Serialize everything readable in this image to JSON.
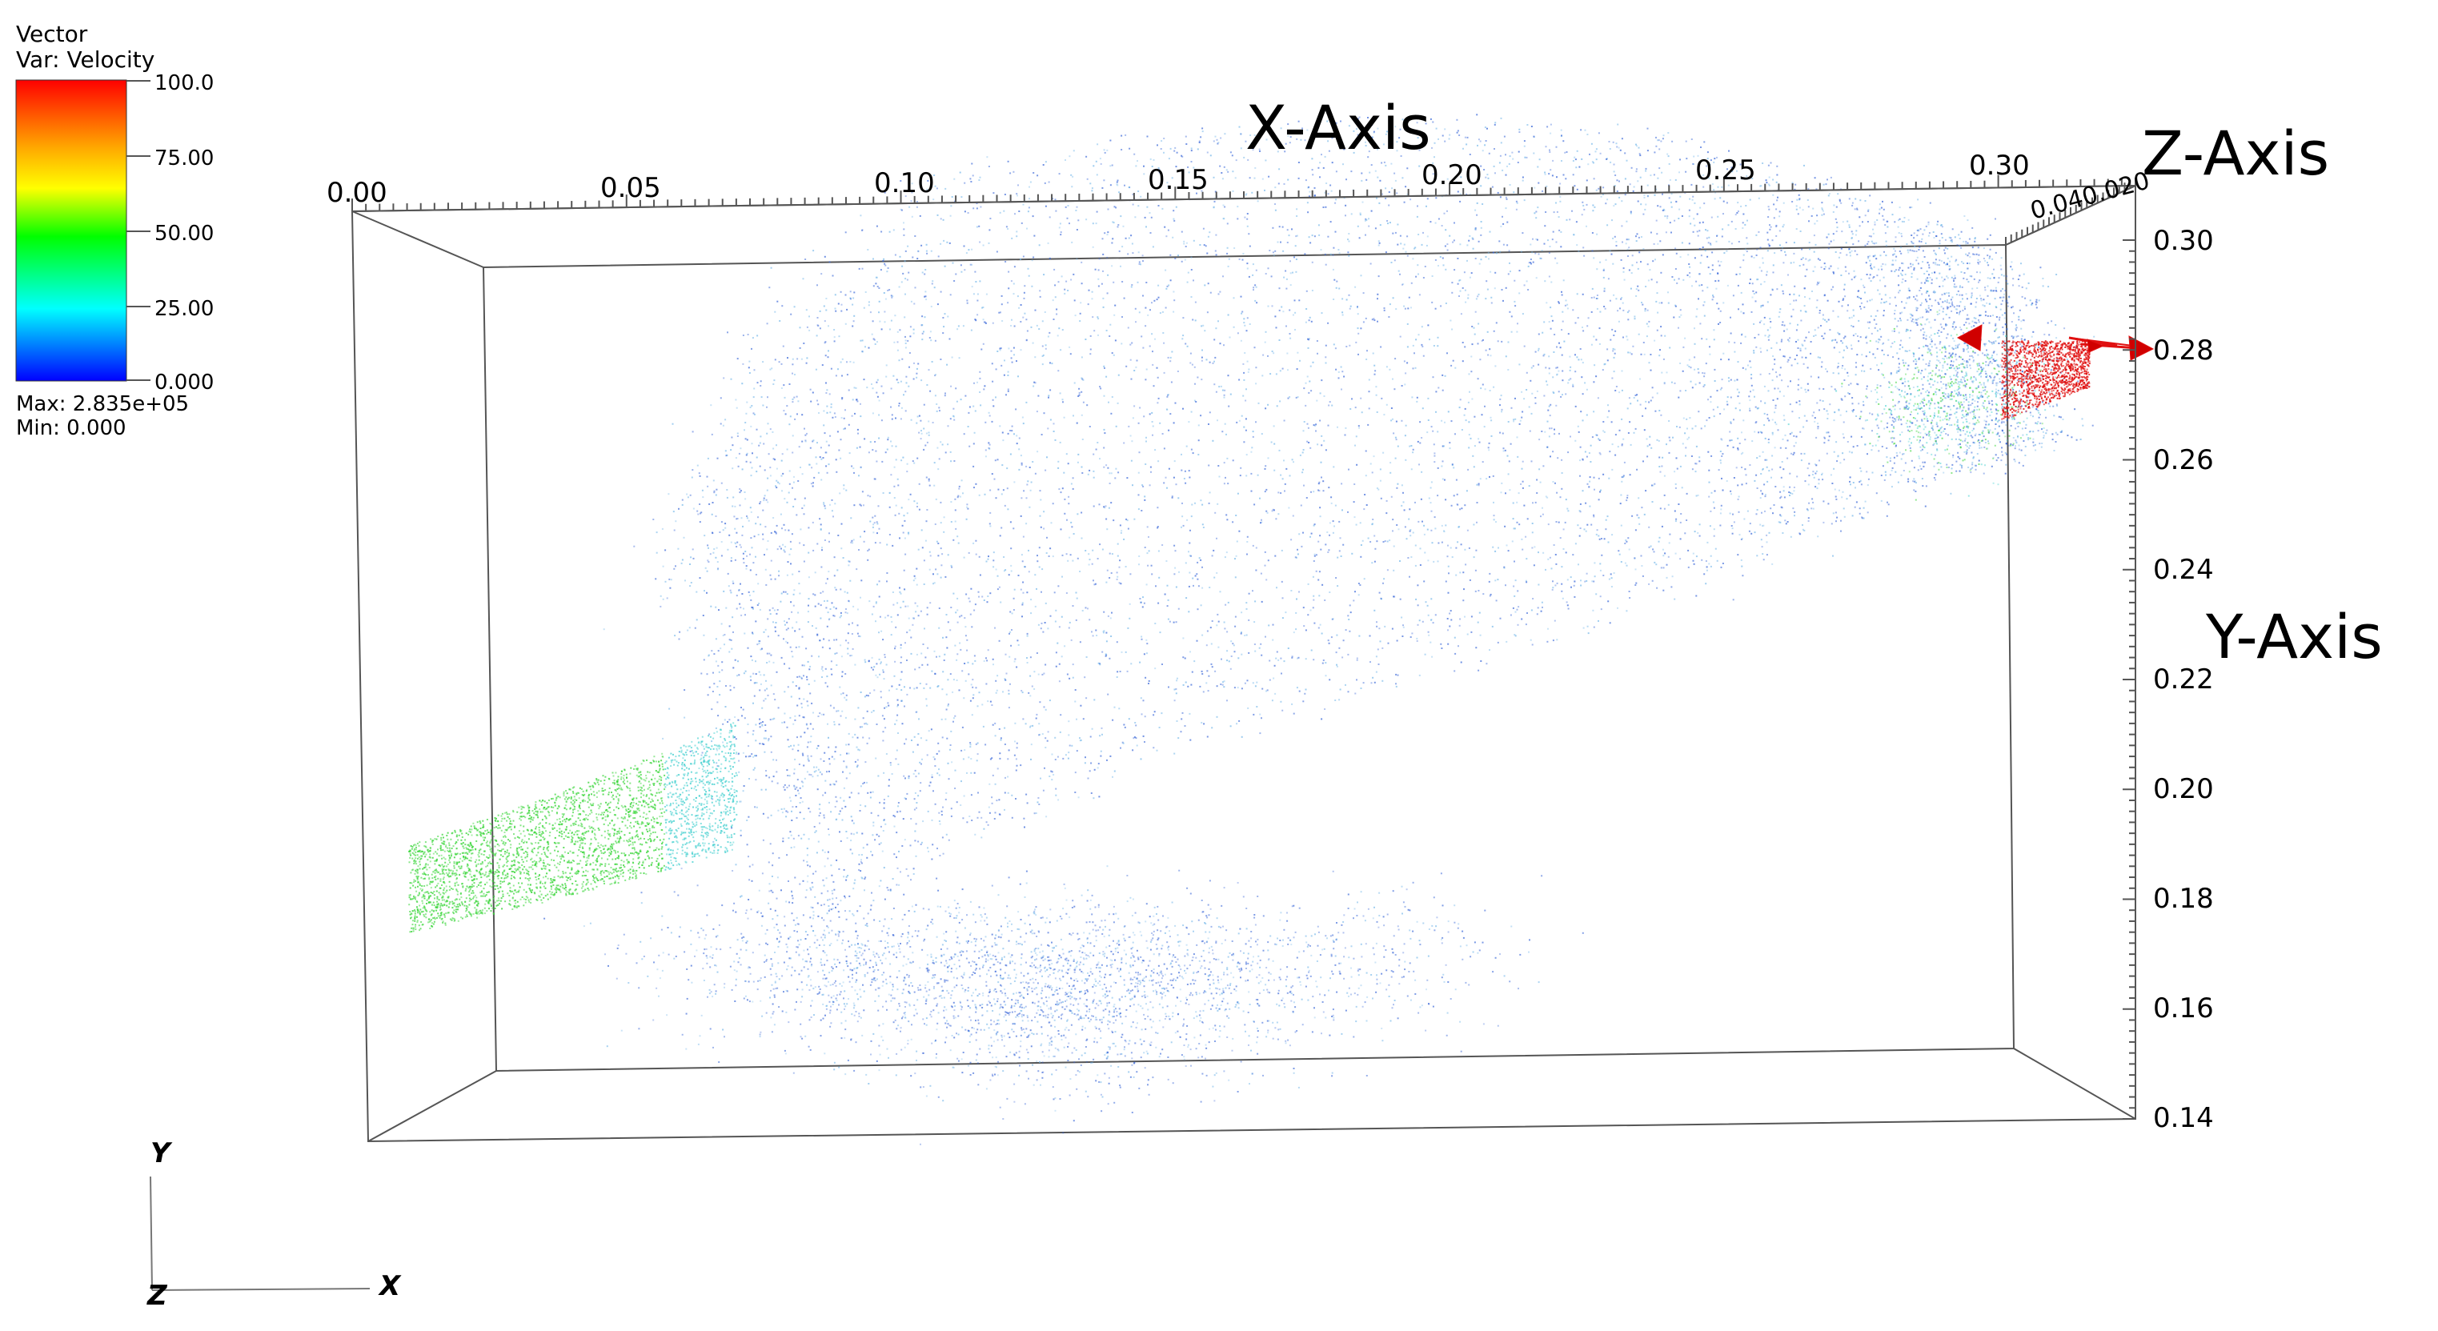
{
  "legend": {
    "header": "Vector",
    "variable": "Var: Velocity",
    "ticks": [
      "100.0",
      "75.00",
      "50.00",
      "25.00",
      "0.000"
    ],
    "max_label": "Max:  2.835e+05",
    "min_label": "Min:  0.000",
    "colors": [
      "#ff0000",
      "#ffa500",
      "#ffff00",
      "#00ff00",
      "#00ffff",
      "#0000ff"
    ]
  },
  "axes": {
    "x_title": "X-Axis",
    "y_title": "Y-Axis",
    "z_title": "Z-Axis",
    "x_ticks": [
      "0.00",
      "0.05",
      "0.10",
      "0.15",
      "0.20",
      "0.25",
      "0.30"
    ],
    "y_ticks": [
      "0.30",
      "0.28",
      "0.26",
      "0.24",
      "0.22",
      "0.20",
      "0.18",
      "0.16",
      "0.14"
    ],
    "z_tick_text": "0.040.020"
  },
  "triad": {
    "y": "Y",
    "x": "X",
    "z": "Z"
  },
  "colors": {
    "particle_blue": "#2f5fd6",
    "particle_light_blue": "#6fb4e8",
    "particle_cyan": "#45d0d0",
    "particle_green": "#3bd63b",
    "particle_red": "#e01010",
    "axis_line": "#555555"
  }
}
